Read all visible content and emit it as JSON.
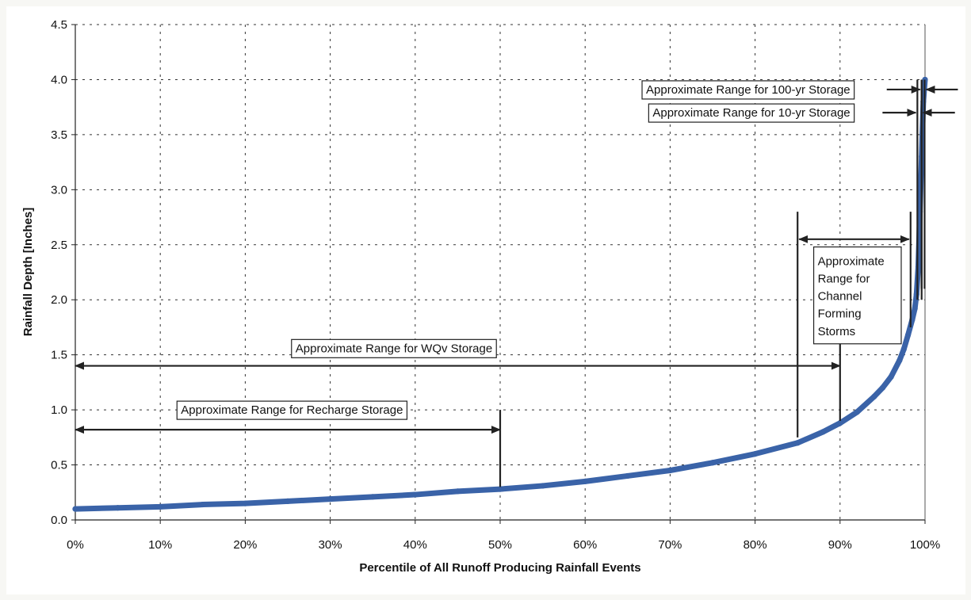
{
  "chart_data": {
    "type": "line",
    "title": "",
    "xlabel": "Percentile of All Runoff Producing Rainfall Events",
    "ylabel": "Rainfall Depth [Inches]",
    "xlim": [
      0,
      100
    ],
    "ylim": [
      0,
      4.5
    ],
    "grid": true,
    "x_ticks": [
      0,
      10,
      20,
      30,
      40,
      50,
      60,
      70,
      80,
      90,
      100
    ],
    "x_tick_labels": [
      "0%",
      "10%",
      "20%",
      "30%",
      "40%",
      "50%",
      "60%",
      "70%",
      "80%",
      "90%",
      "100%"
    ],
    "y_ticks": [
      0,
      0.5,
      1,
      1.5,
      2,
      2.5,
      3,
      3.5,
      4,
      4.5
    ],
    "y_tick_labels": [
      "0.0",
      "0.5",
      "1.0",
      "1.5",
      "2.0",
      "2.5",
      "3.0",
      "3.5",
      "4.0",
      "4.5"
    ],
    "series": [
      {
        "color": "#3a63a8",
        "x": [
          0,
          5,
          10,
          15,
          20,
          25,
          30,
          35,
          40,
          45,
          50,
          55,
          60,
          65,
          70,
          75,
          80,
          85,
          88,
          90,
          92,
          94,
          95,
          96,
          97,
          97.5,
          98,
          98.5,
          98.8,
          99,
          99.2,
          99.4,
          99.6,
          99.8,
          100
        ],
        "y": [
          0.1,
          0.11,
          0.12,
          0.14,
          0.15,
          0.17,
          0.19,
          0.21,
          0.23,
          0.26,
          0.28,
          0.31,
          0.35,
          0.4,
          0.45,
          0.52,
          0.6,
          0.7,
          0.8,
          0.88,
          0.98,
          1.12,
          1.2,
          1.3,
          1.45,
          1.55,
          1.68,
          1.82,
          1.92,
          2.05,
          2.3,
          2.8,
          3.3,
          3.8,
          4.0
        ]
      }
    ],
    "annotations": [
      {
        "label": "Approximate Range for Recharge Storage",
        "type": "horizontal-range",
        "x_start": 0,
        "x_end": 50,
        "y": 0.82,
        "label_x": 25.5,
        "label_y": 1.0,
        "end_marker": {
          "x": 50,
          "y_low": 0.3,
          "y_high": 1.0
        }
      },
      {
        "label": "Approximate Range for WQv Storage",
        "type": "horizontal-range",
        "x_start": 0,
        "x_end": 90,
        "y": 1.4,
        "label_x": 37.5,
        "label_y": 1.56,
        "end_marker": {
          "x": 90,
          "y_low": 0.9,
          "y_high": 1.6
        }
      },
      {
        "label": "Approximate Range for Channel Forming Storms",
        "label_lines": [
          "Approximate",
          "Range for",
          "Channel",
          "Forming",
          "Storms"
        ],
        "type": "bracket-range",
        "x_start": 85,
        "x_end": 98.3,
        "y": 2.55,
        "box": {
          "x_left": 86.9,
          "x_right": 97.2,
          "y_top": 2.48,
          "y_bottom": 1.6
        },
        "left_marker": {
          "x": 85,
          "y_low": 0.75,
          "y_high": 2.8
        },
        "right_marker": {
          "x": 98.3,
          "y_low": 1.75,
          "y_high": 2.8
        }
      },
      {
        "label": "Approximate Range for 10-yr Storage",
        "type": "inward-arrows",
        "x_start": 99.1,
        "x_end": 99.6,
        "y": 3.7,
        "label_x_right": 91.2,
        "label_y": 3.7,
        "marker_y_low": 2.0,
        "marker_y_high": 4.0
      },
      {
        "label": "Approximate Range for 100-yr Storage",
        "type": "inward-arrows",
        "x_start": 99.6,
        "x_end": 99.95,
        "y": 3.91,
        "label_x_right": 91.2,
        "label_y": 3.91,
        "marker_y_low": 2.1,
        "marker_y_high": 4.0
      }
    ]
  }
}
